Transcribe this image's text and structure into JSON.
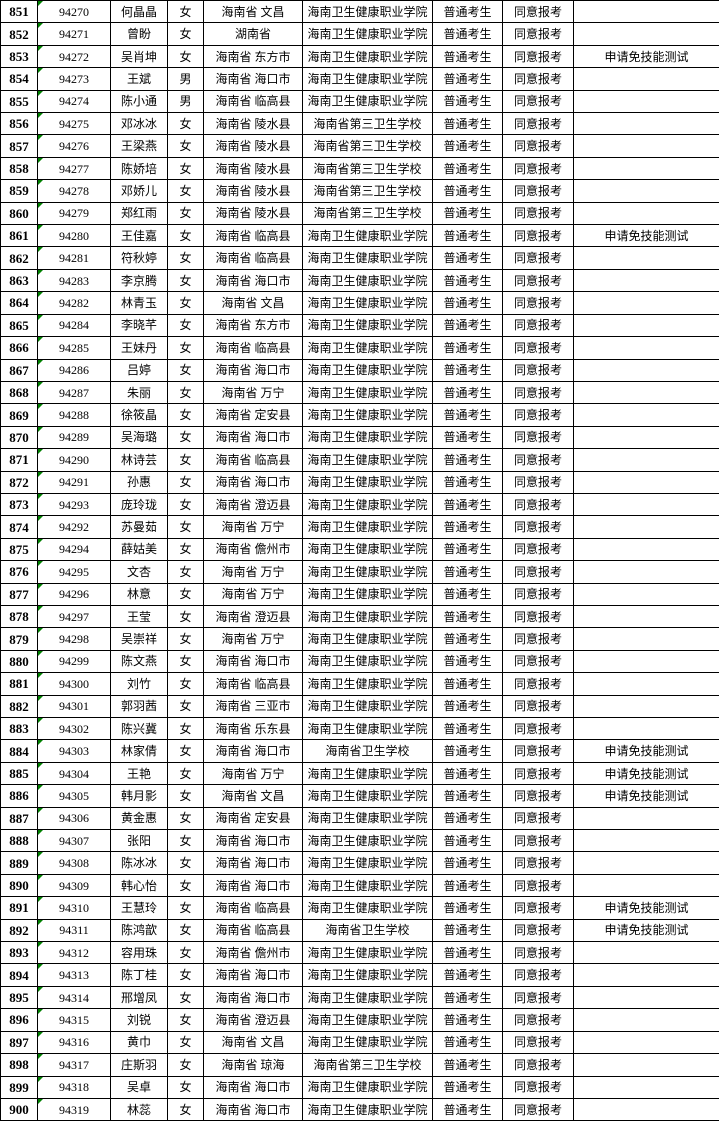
{
  "colors": {
    "grid_border": "#000000",
    "error_indicator_green": "#008000",
    "text": "#000000",
    "background": "#ffffff"
  },
  "table": {
    "column_names": [
      "row-number",
      "registration-number",
      "name",
      "gender",
      "region",
      "school",
      "candidate-type",
      "review-result",
      "note"
    ],
    "rows": [
      [
        "851",
        "94270",
        "何晶晶",
        "女",
        "海南省 文昌",
        "海南卫生健康职业学院",
        "普通考生",
        "同意报考",
        ""
      ],
      [
        "852",
        "94271",
        "曾盼",
        "女",
        "湖南省",
        "海南卫生健康职业学院",
        "普通考生",
        "同意报考",
        ""
      ],
      [
        "853",
        "94272",
        "吴肖坤",
        "女",
        "海南省 东方市",
        "海南卫生健康职业学院",
        "普通考生",
        "同意报考",
        "申请免技能测试"
      ],
      [
        "854",
        "94273",
        "王斌",
        "男",
        "海南省 海口市",
        "海南卫生健康职业学院",
        "普通考生",
        "同意报考",
        ""
      ],
      [
        "855",
        "94274",
        "陈小通",
        "男",
        "海南省 临高县",
        "海南卫生健康职业学院",
        "普通考生",
        "同意报考",
        ""
      ],
      [
        "856",
        "94275",
        "邓冰冰",
        "女",
        "海南省 陵水县",
        "海南省第三卫生学校",
        "普通考生",
        "同意报考",
        ""
      ],
      [
        "857",
        "94276",
        "王梁燕",
        "女",
        "海南省 陵水县",
        "海南省第三卫生学校",
        "普通考生",
        "同意报考",
        ""
      ],
      [
        "858",
        "94277",
        "陈娇培",
        "女",
        "海南省 陵水县",
        "海南省第三卫生学校",
        "普通考生",
        "同意报考",
        ""
      ],
      [
        "859",
        "94278",
        "邓娇儿",
        "女",
        "海南省 陵水县",
        "海南省第三卫生学校",
        "普通考生",
        "同意报考",
        ""
      ],
      [
        "860",
        "94279",
        "郑红雨",
        "女",
        "海南省 陵水县",
        "海南省第三卫生学校",
        "普通考生",
        "同意报考",
        ""
      ],
      [
        "861",
        "94280",
        "王佳嘉",
        "女",
        "海南省 临高县",
        "海南卫生健康职业学院",
        "普通考生",
        "同意报考",
        "申请免技能测试"
      ],
      [
        "862",
        "94281",
        "符秋婷",
        "女",
        "海南省 临高县",
        "海南卫生健康职业学院",
        "普通考生",
        "同意报考",
        ""
      ],
      [
        "863",
        "94283",
        "李京腾",
        "女",
        "海南省 海口市",
        "海南卫生健康职业学院",
        "普通考生",
        "同意报考",
        ""
      ],
      [
        "864",
        "94282",
        "林青玉",
        "女",
        "海南省 文昌",
        "海南卫生健康职业学院",
        "普通考生",
        "同意报考",
        ""
      ],
      [
        "865",
        "94284",
        "李晓芊",
        "女",
        "海南省 东方市",
        "海南卫生健康职业学院",
        "普通考生",
        "同意报考",
        ""
      ],
      [
        "866",
        "94285",
        "王妹丹",
        "女",
        "海南省 临高县",
        "海南卫生健康职业学院",
        "普通考生",
        "同意报考",
        ""
      ],
      [
        "867",
        "94286",
        "吕婷",
        "女",
        "海南省 海口市",
        "海南卫生健康职业学院",
        "普通考生",
        "同意报考",
        ""
      ],
      [
        "868",
        "94287",
        "朱丽",
        "女",
        "海南省 万宁",
        "海南卫生健康职业学院",
        "普通考生",
        "同意报考",
        ""
      ],
      [
        "869",
        "94288",
        "徐筱晶",
        "女",
        "海南省 定安县",
        "海南卫生健康职业学院",
        "普通考生",
        "同意报考",
        ""
      ],
      [
        "870",
        "94289",
        "吴海璐",
        "女",
        "海南省 海口市",
        "海南卫生健康职业学院",
        "普通考生",
        "同意报考",
        ""
      ],
      [
        "871",
        "94290",
        "林诗芸",
        "女",
        "海南省 临高县",
        "海南卫生健康职业学院",
        "普通考生",
        "同意报考",
        ""
      ],
      [
        "872",
        "94291",
        "孙惠",
        "女",
        "海南省 海口市",
        "海南卫生健康职业学院",
        "普通考生",
        "同意报考",
        ""
      ],
      [
        "873",
        "94293",
        "庞玲珑",
        "女",
        "海南省 澄迈县",
        "海南卫生健康职业学院",
        "普通考生",
        "同意报考",
        ""
      ],
      [
        "874",
        "94292",
        "苏曼茹",
        "女",
        "海南省 万宁",
        "海南卫生健康职业学院",
        "普通考生",
        "同意报考",
        ""
      ],
      [
        "875",
        "94294",
        "薛姑美",
        "女",
        "海南省 儋州市",
        "海南卫生健康职业学院",
        "普通考生",
        "同意报考",
        ""
      ],
      [
        "876",
        "94295",
        "文杏",
        "女",
        "海南省 万宁",
        "海南卫生健康职业学院",
        "普通考生",
        "同意报考",
        ""
      ],
      [
        "877",
        "94296",
        "林意",
        "女",
        "海南省 万宁",
        "海南卫生健康职业学院",
        "普通考生",
        "同意报考",
        ""
      ],
      [
        "878",
        "94297",
        "王莹",
        "女",
        "海南省 澄迈县",
        "海南卫生健康职业学院",
        "普通考生",
        "同意报考",
        ""
      ],
      [
        "879",
        "94298",
        "吴崇祥",
        "女",
        "海南省 万宁",
        "海南卫生健康职业学院",
        "普通考生",
        "同意报考",
        ""
      ],
      [
        "880",
        "94299",
        "陈文燕",
        "女",
        "海南省 海口市",
        "海南卫生健康职业学院",
        "普通考生",
        "同意报考",
        ""
      ],
      [
        "881",
        "94300",
        "刘竹",
        "女",
        "海南省 临高县",
        "海南卫生健康职业学院",
        "普通考生",
        "同意报考",
        ""
      ],
      [
        "882",
        "94301",
        "郭羽茜",
        "女",
        "海南省 三亚市",
        "海南卫生健康职业学院",
        "普通考生",
        "同意报考",
        ""
      ],
      [
        "883",
        "94302",
        "陈兴冀",
        "女",
        "海南省 乐东县",
        "海南卫生健康职业学院",
        "普通考生",
        "同意报考",
        ""
      ],
      [
        "884",
        "94303",
        "林家倩",
        "女",
        "海南省 海口市",
        "海南省卫生学校",
        "普通考生",
        "同意报考",
        "申请免技能测试"
      ],
      [
        "885",
        "94304",
        "王艳",
        "女",
        "海南省 万宁",
        "海南卫生健康职业学院",
        "普通考生",
        "同意报考",
        "申请免技能测试"
      ],
      [
        "886",
        "94305",
        "韩月影",
        "女",
        "海南省 文昌",
        "海南卫生健康职业学院",
        "普通考生",
        "同意报考",
        "申请免技能测试"
      ],
      [
        "887",
        "94306",
        "黄金惠",
        "女",
        "海南省 定安县",
        "海南卫生健康职业学院",
        "普通考生",
        "同意报考",
        ""
      ],
      [
        "888",
        "94307",
        "张阳",
        "女",
        "海南省 海口市",
        "海南卫生健康职业学院",
        "普通考生",
        "同意报考",
        ""
      ],
      [
        "889",
        "94308",
        "陈冰冰",
        "女",
        "海南省 海口市",
        "海南卫生健康职业学院",
        "普通考生",
        "同意报考",
        ""
      ],
      [
        "890",
        "94309",
        "韩心怡",
        "女",
        "海南省 海口市",
        "海南卫生健康职业学院",
        "普通考生",
        "同意报考",
        ""
      ],
      [
        "891",
        "94310",
        "王慧玲",
        "女",
        "海南省 临高县",
        "海南卫生健康职业学院",
        "普通考生",
        "同意报考",
        "申请免技能测试"
      ],
      [
        "892",
        "94311",
        "陈鸿歆",
        "女",
        "海南省 临高县",
        "海南省卫生学校",
        "普通考生",
        "同意报考",
        "申请免技能测试"
      ],
      [
        "893",
        "94312",
        "容用珠",
        "女",
        "海南省 儋州市",
        "海南卫生健康职业学院",
        "普通考生",
        "同意报考",
        ""
      ],
      [
        "894",
        "94313",
        "陈丁桂",
        "女",
        "海南省 海口市",
        "海南卫生健康职业学院",
        "普通考生",
        "同意报考",
        ""
      ],
      [
        "895",
        "94314",
        "邢增凤",
        "女",
        "海南省 海口市",
        "海南卫生健康职业学院",
        "普通考生",
        "同意报考",
        ""
      ],
      [
        "896",
        "94315",
        "刘锐",
        "女",
        "海南省 澄迈县",
        "海南卫生健康职业学院",
        "普通考生",
        "同意报考",
        ""
      ],
      [
        "897",
        "94316",
        "黄巾",
        "女",
        "海南省 文昌",
        "海南卫生健康职业学院",
        "普通考生",
        "同意报考",
        ""
      ],
      [
        "898",
        "94317",
        "庄斯羽",
        "女",
        "海南省 琼海",
        "海南省第三卫生学校",
        "普通考生",
        "同意报考",
        ""
      ],
      [
        "899",
        "94318",
        "吴卓",
        "女",
        "海南省 海口市",
        "海南卫生健康职业学院",
        "普通考生",
        "同意报考",
        ""
      ],
      [
        "900",
        "94319",
        "林蕊",
        "女",
        "海南省 海口市",
        "海南卫生健康职业学院",
        "普通考生",
        "同意报考",
        ""
      ]
    ]
  }
}
